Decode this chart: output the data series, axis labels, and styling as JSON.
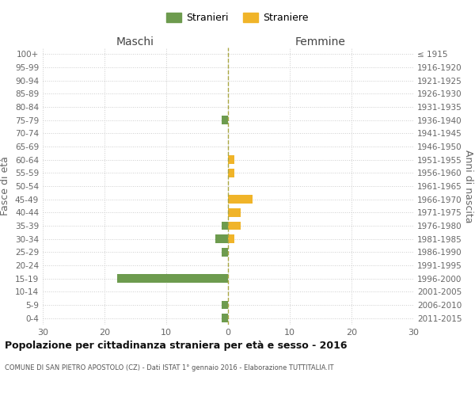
{
  "age_groups": [
    "100+",
    "95-99",
    "90-94",
    "85-89",
    "80-84",
    "75-79",
    "70-74",
    "65-69",
    "60-64",
    "55-59",
    "50-54",
    "45-49",
    "40-44",
    "35-39",
    "30-34",
    "25-29",
    "20-24",
    "15-19",
    "10-14",
    "5-9",
    "0-4"
  ],
  "birth_years": [
    "≤ 1915",
    "1916-1920",
    "1921-1925",
    "1926-1930",
    "1931-1935",
    "1936-1940",
    "1941-1945",
    "1946-1950",
    "1951-1955",
    "1956-1960",
    "1961-1965",
    "1966-1970",
    "1971-1975",
    "1976-1980",
    "1981-1985",
    "1986-1990",
    "1991-1995",
    "1996-2000",
    "2001-2005",
    "2006-2010",
    "2011-2015"
  ],
  "maschi_stranieri": [
    0,
    0,
    0,
    0,
    0,
    1,
    0,
    0,
    0,
    0,
    0,
    0,
    0,
    1,
    2,
    1,
    0,
    18,
    0,
    1,
    1
  ],
  "femmine_straniere": [
    0,
    0,
    0,
    0,
    0,
    0,
    0,
    0,
    1,
    1,
    0,
    4,
    2,
    2,
    1,
    0,
    0,
    0,
    0,
    0,
    0
  ],
  "color_maschi": "#6d9b4e",
  "color_femmine": "#f0b429",
  "title": "Popolazione per cittadinanza straniera per età e sesso - 2016",
  "subtitle": "COMUNE DI SAN PIETRO APOSTOLO (CZ) - Dati ISTAT 1° gennaio 2016 - Elaborazione TUTTITALIA.IT",
  "xlabel_left": "Maschi",
  "xlabel_right": "Femmine",
  "ylabel_left": "Fasce di età",
  "ylabel_right": "Anni di nascita",
  "xlim": 30,
  "legend_stranieri": "Stranieri",
  "legend_straniere": "Straniere",
  "background_color": "#ffffff",
  "grid_color": "#cccccc"
}
